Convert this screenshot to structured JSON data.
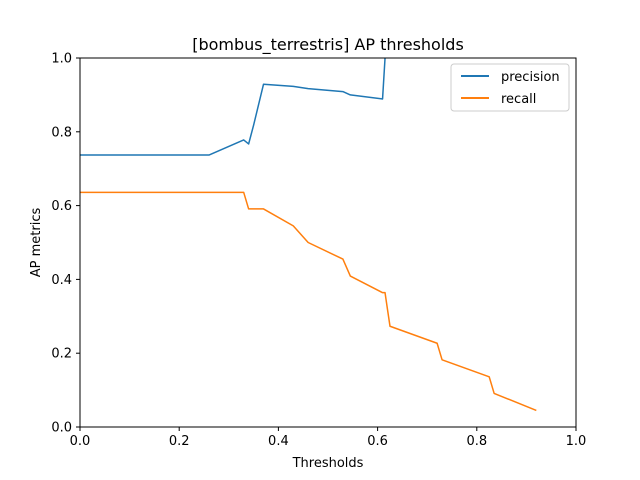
{
  "chart_data": {
    "type": "line",
    "title": "[bombus_terrestris] AP thresholds",
    "xlabel": "Thresholds",
    "ylabel": "AP metrics",
    "xlim": [
      0.0,
      1.0
    ],
    "ylim": [
      0.0,
      1.0
    ],
    "xticks": [
      "0.0",
      "0.2",
      "0.4",
      "0.6",
      "0.8",
      "1.0"
    ],
    "yticks": [
      "0.0",
      "0.2",
      "0.4",
      "0.6",
      "0.8",
      "1.0"
    ],
    "grid": false,
    "legend_position": "top-right",
    "series": [
      {
        "name": "precision",
        "color": "#1f77b4",
        "x": [
          0.0,
          0.26,
          0.33,
          0.34,
          0.35,
          0.37,
          0.43,
          0.46,
          0.53,
          0.545,
          0.61,
          0.615
        ],
        "y": [
          0.737,
          0.737,
          0.778,
          0.767,
          0.818,
          0.929,
          0.923,
          0.917,
          0.909,
          0.9,
          0.889,
          1.0
        ]
      },
      {
        "name": "recall",
        "color": "#ff7f0e",
        "x": [
          0.0,
          0.33,
          0.34,
          0.37,
          0.43,
          0.46,
          0.53,
          0.545,
          0.61,
          0.615,
          0.62,
          0.625,
          0.72,
          0.73,
          0.825,
          0.835,
          0.92
        ],
        "y": [
          0.636,
          0.636,
          0.591,
          0.591,
          0.545,
          0.5,
          0.455,
          0.409,
          0.364,
          0.364,
          0.318,
          0.273,
          0.227,
          0.182,
          0.136,
          0.091,
          0.045
        ]
      }
    ]
  }
}
